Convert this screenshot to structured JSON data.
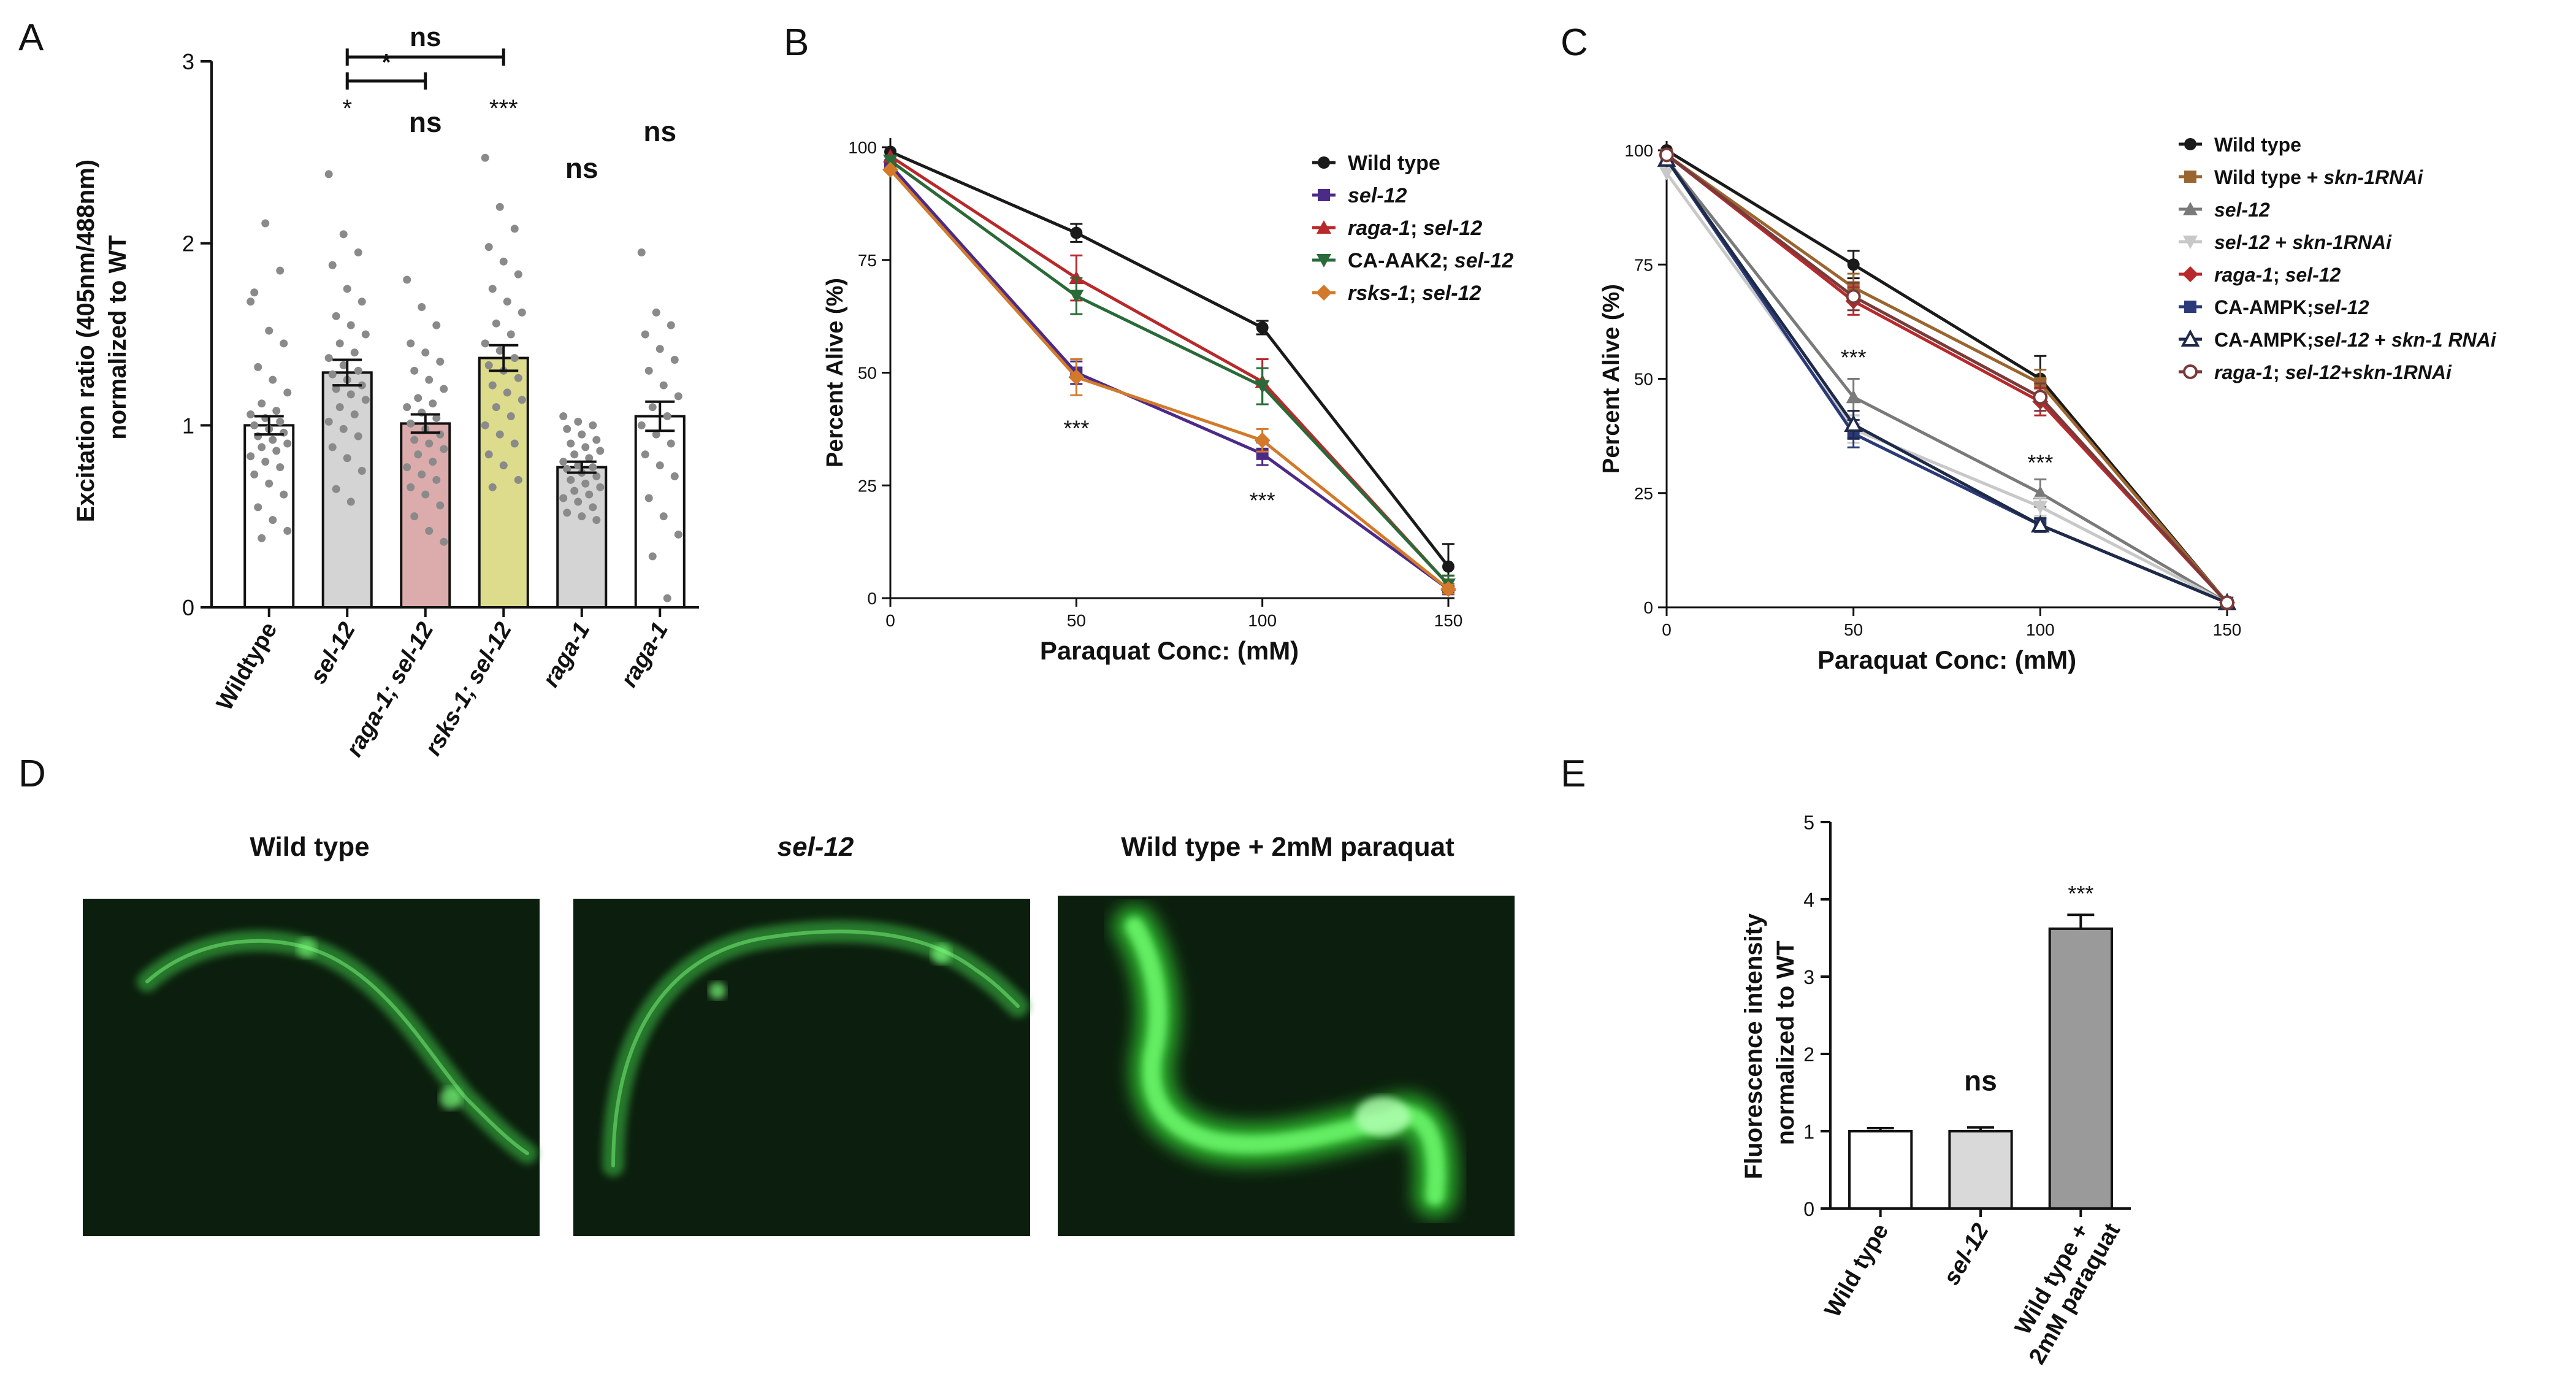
{
  "panels": {
    "A": "A",
    "B": "B",
    "C": "C",
    "D": "D",
    "E": "E"
  },
  "chart_data": [
    {
      "id": "A",
      "type": "bar",
      "ylabel": "Excitation ratio (405nm/488nm)\nnormalized to WT",
      "ylim": [
        0,
        3
      ],
      "yticks": [
        "0",
        "1",
        "2",
        "3"
      ],
      "categories": [
        "Wildtype",
        "sel-12",
        "raga-1; sel-12",
        "rsks-1; sel-12",
        "raga-1",
        "raga-1"
      ],
      "values": [
        1.0,
        1.29,
        1.01,
        1.37,
        0.77,
        1.05
      ],
      "errors": [
        0.05,
        0.07,
        0.05,
        0.07,
        0.03,
        0.08
      ],
      "colors": [
        "#ffffff",
        "#d4d4d4",
        "#dcacac",
        "#dcdc8c",
        "#d4d4d4",
        "#ffffff"
      ],
      "significance": [
        "",
        "*",
        "ns",
        "***",
        "ns",
        "ns"
      ],
      "brackets": [
        {
          "label": "*",
          "from": 1,
          "to": 2
        },
        {
          "label": "ns",
          "from": 1,
          "to": 3
        }
      ],
      "points": [
        [
          1.68,
          2.11,
          1.85,
          1.73,
          1.52,
          1.45,
          1.32,
          1.25,
          1.18,
          1.12,
          1.08,
          1.06,
          1.04,
          1.02,
          1.0,
          0.98,
          0.96,
          0.94,
          0.92,
          0.9,
          0.88,
          0.86,
          0.83,
          0.8,
          0.77,
          0.73,
          0.68,
          0.62,
          0.55,
          0.48,
          0.42,
          0.38
        ],
        [
          2.38,
          2.05,
          1.95,
          1.88,
          1.75,
          1.68,
          1.6,
          1.55,
          1.5,
          1.45,
          1.4,
          1.37,
          1.33,
          1.3,
          1.28,
          1.25,
          1.22,
          1.2,
          1.17,
          1.14,
          1.1,
          1.06,
          1.02,
          0.98,
          0.94,
          0.88,
          0.82,
          0.75,
          0.65,
          0.58
        ],
        [
          1.8,
          1.65,
          1.55,
          1.45,
          1.4,
          1.35,
          1.3,
          1.25,
          1.2,
          1.15,
          1.12,
          1.1,
          1.07,
          1.04,
          1.01,
          0.98,
          0.95,
          0.92,
          0.9,
          0.87,
          0.84,
          0.8,
          0.77,
          0.73,
          0.7,
          0.66,
          0.62,
          0.56,
          0.5,
          0.42,
          0.36
        ],
        [
          2.47,
          2.2,
          2.08,
          1.98,
          1.9,
          1.83,
          1.75,
          1.68,
          1.62,
          1.56,
          1.5,
          1.45,
          1.41,
          1.37,
          1.33,
          1.3,
          1.26,
          1.22,
          1.18,
          1.14,
          1.1,
          1.05,
          1.0,
          0.95,
          0.9,
          0.84,
          0.78,
          0.7,
          0.66
        ],
        [
          1.05,
          1.02,
          1.0,
          0.98,
          0.95,
          0.92,
          0.9,
          0.88,
          0.86,
          0.84,
          0.82,
          0.8,
          0.78,
          0.77,
          0.76,
          0.74,
          0.72,
          0.7,
          0.68,
          0.66,
          0.64,
          0.62,
          0.6,
          0.58,
          0.55,
          0.52,
          0.5,
          0.48
        ],
        [
          1.95,
          1.62,
          1.55,
          1.5,
          1.42,
          1.36,
          1.3,
          1.22,
          1.16,
          1.1,
          1.05,
          1.0,
          0.95,
          0.9,
          0.84,
          0.78,
          0.72,
          0.6,
          0.5,
          0.4,
          0.28,
          0.05
        ]
      ]
    },
    {
      "id": "B",
      "type": "line",
      "xlabel": "Paraquat Conc: (mM)",
      "ylabel": "Percent Alive (%)",
      "x": [
        0,
        50,
        100,
        150
      ],
      "xticks": [
        "0",
        "50",
        "100",
        "150"
      ],
      "xlim": [
        0,
        150
      ],
      "ylim": [
        0,
        100
      ],
      "yticks": [
        "0",
        "25",
        "50",
        "75",
        "100"
      ],
      "series": [
        {
          "name": "Wild type",
          "values": [
            99,
            81,
            60,
            7
          ],
          "errors": [
            0,
            2,
            1.5,
            5
          ],
          "color": "#1a1a1a",
          "marker": "circle"
        },
        {
          "name": "sel-12",
          "values": [
            96,
            50,
            32,
            2
          ],
          "errors": [
            0,
            2.5,
            2.5,
            1
          ],
          "color": "#4b2a88",
          "marker": "square"
        },
        {
          "name": "raga-1; sel-12",
          "values": [
            98,
            71,
            48,
            3
          ],
          "errors": [
            0,
            5,
            5,
            2
          ],
          "color": "#b8292b",
          "marker": "triangle"
        },
        {
          "name": "CA-AAK2; sel-12",
          "values": [
            97,
            67,
            47,
            3
          ],
          "errors": [
            0,
            4,
            4,
            2
          ],
          "color": "#2a6a38",
          "marker": "tridown"
        },
        {
          "name": "rsks-1; sel-12",
          "values": [
            95,
            49,
            35,
            2
          ],
          "errors": [
            0,
            4,
            2.5,
            1
          ],
          "color": "#d27a2a",
          "marker": "diamond"
        }
      ],
      "annotations": [
        {
          "x": 50,
          "y": 36,
          "text": "***"
        },
        {
          "x": 100,
          "y": 20,
          "text": "***"
        }
      ]
    },
    {
      "id": "C",
      "type": "line",
      "xlabel": "Paraquat Conc: (mM)",
      "ylabel": "Percent Alive (%)",
      "x": [
        0,
        50,
        100,
        150
      ],
      "xticks": [
        "0",
        "50",
        "100",
        "150"
      ],
      "xlim": [
        0,
        150
      ],
      "ylim": [
        0,
        100
      ],
      "yticks": [
        "0",
        "25",
        "50",
        "75",
        "100"
      ],
      "series": [
        {
          "name": "Wild type",
          "values": [
            100,
            75,
            50,
            1
          ],
          "errors": [
            0,
            3,
            5,
            1
          ],
          "color": "#1a1a1a",
          "marker": "circle"
        },
        {
          "name": "Wild type + skn-1RNAi",
          "values": [
            99,
            70,
            49,
            1
          ],
          "errors": [
            0,
            3,
            3,
            1
          ],
          "color": "#9a6530",
          "marker": "square"
        },
        {
          "name": "sel-12",
          "values": [
            98,
            46,
            25,
            1
          ],
          "errors": [
            0,
            4,
            3,
            1
          ],
          "color": "#7a7a7a",
          "marker": "triangle"
        },
        {
          "name": "sel-12 + skn-1RNAi",
          "values": [
            95,
            39,
            22,
            1
          ],
          "errors": [
            0,
            3,
            2,
            1
          ],
          "color": "#c8c8c8",
          "marker": "tridown"
        },
        {
          "name": "raga-1; sel-12",
          "values": [
            99,
            67,
            45,
            1
          ],
          "errors": [
            0,
            3,
            3,
            1
          ],
          "color": "#b8292b",
          "marker": "diamond"
        },
        {
          "name": "CA-AMPK;sel-12",
          "values": [
            98,
            38,
            18,
            1
          ],
          "errors": [
            0,
            3,
            1.5,
            1
          ],
          "color": "#2a3a78",
          "marker": "square"
        },
        {
          "name": "CA-AMPK;sel-12 + skn-1 RNAi",
          "values": [
            98,
            40,
            18,
            1
          ],
          "errors": [
            0,
            3,
            1.5,
            1
          ],
          "color": "#1e2a48",
          "marker": "opentriangle"
        },
        {
          "name": "raga-1; sel-12+skn-1RNAi",
          "values": [
            99,
            68,
            46,
            1
          ],
          "errors": [
            0,
            3,
            3,
            1
          ],
          "color": "#7a3a3a",
          "marker": "opencircle"
        }
      ],
      "annotations": [
        {
          "x": 50,
          "y": 53,
          "text": "***"
        },
        {
          "x": 100,
          "y": 30,
          "text": "***"
        }
      ]
    },
    {
      "id": "E",
      "type": "bar",
      "ylabel": "Fluorescence intensity\nnormalized to WT",
      "ylim": [
        0,
        5
      ],
      "yticks": [
        "0",
        "1",
        "2",
        "3",
        "4",
        "5"
      ],
      "categories": [
        "Wild type",
        "sel-12",
        "Wild type +\n2mM paraquat"
      ],
      "values": [
        1.0,
        1.0,
        3.62
      ],
      "errors": [
        0.04,
        0.05,
        0.18
      ],
      "colors": [
        "#ffffff",
        "#d9d9d9",
        "#9a9a9a"
      ],
      "significance": [
        "",
        "ns",
        "***"
      ]
    }
  ],
  "micrographs": [
    {
      "label": "Wild type",
      "italic": false
    },
    {
      "label": "sel-12",
      "italic": true
    },
    {
      "label": "Wild type + 2mM paraquat",
      "italic": false
    }
  ]
}
